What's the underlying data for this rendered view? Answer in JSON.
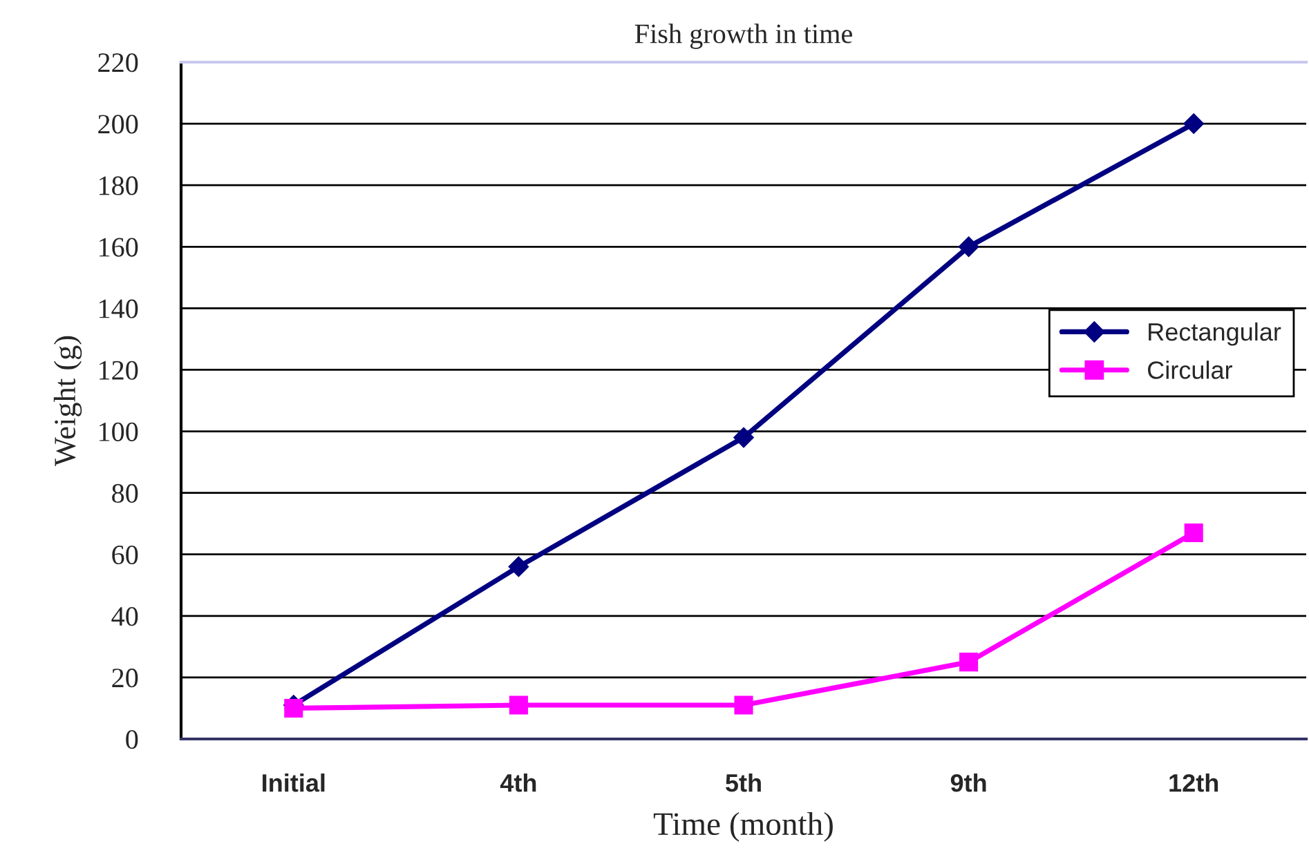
{
  "chart_data": {
    "type": "line",
    "title": "Fish growth in time",
    "xlabel": "Time (month)",
    "ylabel": "Weight (g)",
    "categories": [
      "Initial",
      "4th",
      "5th",
      "9th",
      "12th"
    ],
    "series": [
      {
        "name": "Rectangular",
        "color": "#000080",
        "marker": "diamond",
        "values": [
          11,
          56,
          98,
          160,
          200
        ]
      },
      {
        "name": "Circular",
        "color": "#ff00ff",
        "marker": "square",
        "values": [
          10,
          11,
          11,
          25,
          67
        ]
      }
    ],
    "ylim": [
      0,
      220
    ],
    "yticks": [
      0,
      20,
      40,
      60,
      80,
      100,
      120,
      140,
      160,
      180,
      200,
      220
    ],
    "grid": "y",
    "legend": "right",
    "line_style": "solid"
  }
}
